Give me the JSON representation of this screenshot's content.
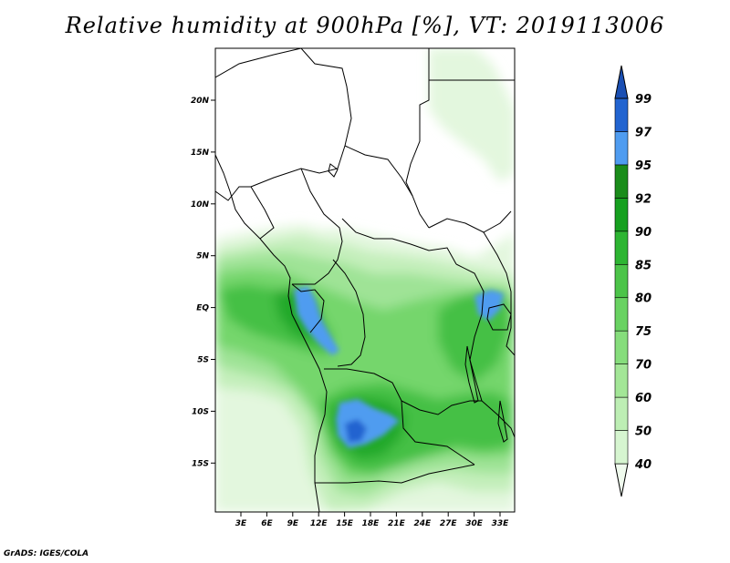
{
  "title": "Relative humidity at 900hPa [%], VT: 2019113006",
  "credit": "GrADS: IGES/COLA",
  "map": {
    "lat_labels": [
      "20N",
      "15N",
      "10N",
      "5N",
      "EQ",
      "5S",
      "10S",
      "15S"
    ],
    "lon_labels": [
      "3E",
      "6E",
      "9E",
      "12E",
      "15E",
      "18E",
      "21E",
      "24E",
      "27E",
      "30E",
      "33E"
    ]
  },
  "colorbar": {
    "levels": [
      "40",
      "50",
      "60",
      "70",
      "75",
      "80",
      "85",
      "90",
      "92",
      "95",
      "97",
      "99"
    ],
    "colors": [
      "#f0fbee",
      "#d6f5d0",
      "#bdeeb4",
      "#a3e697",
      "#86dd7c",
      "#69d262",
      "#4cc449",
      "#2db532",
      "#16a01f",
      "#1a8c1a",
      "#4f9cf0",
      "#2264d0",
      "#1a4fb3"
    ]
  },
  "palette": {
    "g1": "#e3f7de",
    "g2": "#c4efbb",
    "g3": "#9fe396",
    "g4": "#74d66c",
    "g5": "#45c044",
    "g6": "#23a92a",
    "g7": "#14961e",
    "b1": "#4f9cf0",
    "b2": "#2264d0"
  }
}
